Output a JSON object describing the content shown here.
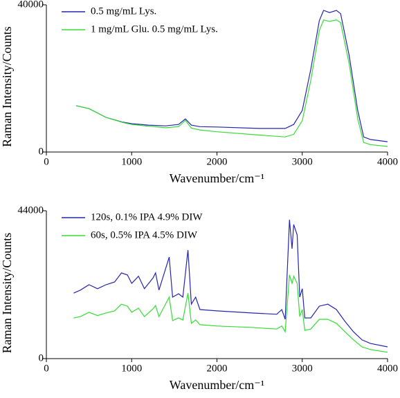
{
  "chart_data": [
    {
      "type": "line",
      "xlabel": "Wavenumber/cm⁻¹",
      "ylabel": "Raman Intensity/Counts",
      "xlim": [
        0,
        4000
      ],
      "ylim": [
        0,
        40000
      ],
      "xticks": [
        0,
        1000,
        2000,
        3000,
        4000
      ],
      "yticks": [
        0,
        40000
      ],
      "legend": "upper left",
      "x": [
        350,
        500,
        700,
        900,
        1000,
        1200,
        1400,
        1550,
        1630,
        1700,
        1800,
        2000,
        2500,
        2800,
        2900,
        3000,
        3100,
        3200,
        3250,
        3320,
        3400,
        3450,
        3550,
        3650,
        3720,
        3800,
        4000
      ],
      "series": [
        {
          "name": "0.5 mg/mL Lys.",
          "color": "#2424b0",
          "values": [
            12600,
            11800,
            9400,
            8100,
            7700,
            7300,
            7100,
            7500,
            9000,
            7300,
            6900,
            6800,
            6400,
            6400,
            7500,
            11300,
            22500,
            35700,
            38500,
            37900,
            38500,
            37600,
            26300,
            11300,
            4100,
            3400,
            2800
          ]
        },
        {
          "name": "1 mg/mL Glu. 0.5 mg/mL Lys.",
          "color": "#33dd33",
          "values": [
            12600,
            11800,
            9400,
            8000,
            7500,
            7000,
            6600,
            6900,
            8600,
            6500,
            6000,
            5500,
            4600,
            4100,
            4800,
            8500,
            19500,
            33000,
            35900,
            35500,
            35900,
            35200,
            24000,
            9000,
            2600,
            2000,
            1500
          ]
        }
      ]
    },
    {
      "type": "line",
      "xlabel": "Wavenumber/cm⁻¹",
      "ylabel": "Raman Intensity/Counts",
      "xlim": [
        0,
        4000
      ],
      "ylim": [
        0,
        44000
      ],
      "xticks": [
        0,
        1000,
        2000,
        3000,
        4000
      ],
      "yticks": [
        0,
        44000
      ],
      "legend": "upper left",
      "x": [
        320,
        400,
        500,
        600,
        700,
        800,
        880,
        950,
        1000,
        1080,
        1150,
        1250,
        1280,
        1320,
        1440,
        1480,
        1550,
        1600,
        1660,
        1700,
        1750,
        1800,
        2000,
        2400,
        2700,
        2760,
        2800,
        2850,
        2880,
        2900,
        2940,
        2970,
        3000,
        3030,
        3100,
        3200,
        3300,
        3400,
        3500,
        3600,
        3700,
        3800,
        4000
      ],
      "series": [
        {
          "name": "120s, 0.1% IPA 4.9% DIW",
          "color": "#2424b0",
          "values": [
            19500,
            20400,
            22000,
            20800,
            22000,
            22800,
            25500,
            24900,
            22400,
            24500,
            20800,
            24000,
            25500,
            20400,
            30200,
            18300,
            19300,
            18300,
            32300,
            16200,
            18300,
            14600,
            14200,
            13600,
            13200,
            14600,
            11700,
            41300,
            32700,
            39900,
            36800,
            18300,
            20800,
            12100,
            12100,
            15600,
            16200,
            14600,
            11100,
            8000,
            5600,
            4500,
            3500
          ]
        },
        {
          "name": "60s, 0.5% IPA 4.5% DIW",
          "color": "#33dd33",
          "values": [
            12100,
            12500,
            13800,
            12800,
            13600,
            14200,
            16200,
            15600,
            13800,
            15000,
            12500,
            14800,
            15800,
            12500,
            18300,
            11300,
            12100,
            11500,
            19500,
            10500,
            11500,
            10100,
            9700,
            9300,
            8800,
            9700,
            8000,
            24900,
            22400,
            24500,
            22400,
            12500,
            14600,
            8400,
            8800,
            11700,
            11700,
            10500,
            8000,
            5600,
            3500,
            2700,
            1900
          ]
        }
      ]
    }
  ]
}
